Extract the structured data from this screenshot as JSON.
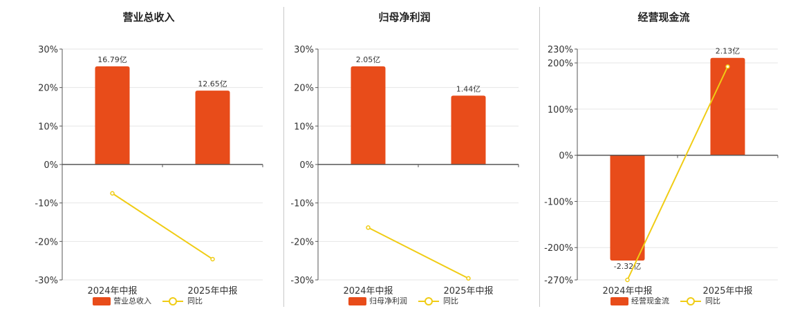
{
  "colors": {
    "bar": "#e84c1a",
    "line": "#f0cc14",
    "grid": "#e6e6e6",
    "axis": "#555555"
  },
  "legend_yoy": "同比",
  "chart_data": [
    {
      "type": "bar",
      "title": "营业总收入",
      "categories": [
        "2024年中报",
        "2025年中报"
      ],
      "ylim": [
        -30,
        30
      ],
      "y_ticks": [
        30,
        20,
        10,
        0,
        -10,
        -20,
        -30
      ],
      "y_tick_labels": [
        "30%",
        "20%",
        "10%",
        "0%",
        "-10%",
        "-20%",
        "-30%"
      ],
      "series": [
        {
          "name": "营业总收入",
          "type": "bar",
          "values": [
            25.5,
            19.2
          ],
          "labels": [
            "16.79亿",
            "12.65亿"
          ]
        },
        {
          "name": "同比",
          "type": "line",
          "values": [
            -7.5,
            -24.6
          ]
        }
      ],
      "grid": true,
      "legend": "bottom-center"
    },
    {
      "type": "bar",
      "title": "归母净利润",
      "categories": [
        "2024年中报",
        "2025年中报"
      ],
      "ylim": [
        -30,
        30
      ],
      "y_ticks": [
        30,
        20,
        10,
        0,
        -10,
        -20,
        -30
      ],
      "y_tick_labels": [
        "30%",
        "20%",
        "10%",
        "0%",
        "-10%",
        "-20%",
        "-30%"
      ],
      "series": [
        {
          "name": "归母净利润",
          "type": "bar",
          "values": [
            25.5,
            17.9
          ],
          "labels": [
            "2.05亿",
            "1.44亿"
          ]
        },
        {
          "name": "同比",
          "type": "line",
          "values": [
            -16.4,
            -29.6
          ]
        }
      ],
      "grid": true,
      "legend": "bottom-center"
    },
    {
      "type": "bar",
      "title": "经营现金流",
      "categories": [
        "2024年中报",
        "2025年中报"
      ],
      "ylim": [
        -270,
        230
      ],
      "y_ticks": [
        230,
        200,
        100,
        0,
        -100,
        -200,
        -270
      ],
      "y_tick_labels": [
        "230%",
        "200%",
        "100%",
        "0%",
        "-100%",
        "-200%",
        "-270%"
      ],
      "series": [
        {
          "name": "经营现金流",
          "type": "bar",
          "values": [
            -228,
            211
          ],
          "labels": [
            "-2.32亿",
            "2.13亿"
          ]
        },
        {
          "name": "同比",
          "type": "line",
          "values": [
            -270,
            192
          ]
        }
      ],
      "grid": true,
      "legend": "bottom-center"
    }
  ]
}
